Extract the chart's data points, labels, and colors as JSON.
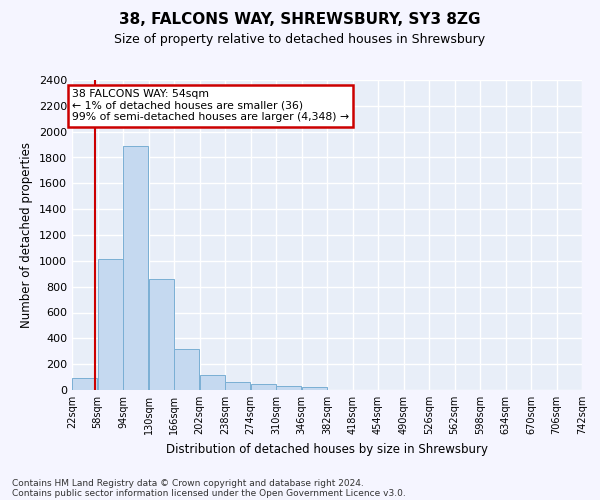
{
  "title": "38, FALCONS WAY, SHREWSBURY, SY3 8ZG",
  "subtitle": "Size of property relative to detached houses in Shrewsbury",
  "xlabel": "Distribution of detached houses by size in Shrewsbury",
  "ylabel": "Number of detached properties",
  "bar_color": "#c5d9f0",
  "bar_edge_color": "#7aafd4",
  "background_color": "#e8eef8",
  "grid_color": "#ffffff",
  "annotation_line1": "38 FALCONS WAY: 54sqm",
  "annotation_line2": "← 1% of detached houses are smaller (36)",
  "annotation_line3": "99% of semi-detached houses are larger (4,348) →",
  "annotation_box_color": "#cc0000",
  "property_line_x": 54,
  "bin_edges": [
    22,
    58,
    94,
    130,
    166,
    202,
    238,
    274,
    310,
    346,
    382,
    418,
    454,
    490,
    526,
    562,
    598,
    634,
    670,
    706,
    742
  ],
  "bin_counts": [
    95,
    1015,
    1890,
    860,
    315,
    115,
    60,
    50,
    32,
    22,
    0,
    0,
    0,
    0,
    0,
    0,
    0,
    0,
    0,
    0
  ],
  "ylim": [
    0,
    2400
  ],
  "yticks": [
    0,
    200,
    400,
    600,
    800,
    1000,
    1200,
    1400,
    1600,
    1800,
    2000,
    2200,
    2400
  ],
  "footer_line1": "Contains HM Land Registry data © Crown copyright and database right 2024.",
  "footer_line2": "Contains public sector information licensed under the Open Government Licence v3.0."
}
